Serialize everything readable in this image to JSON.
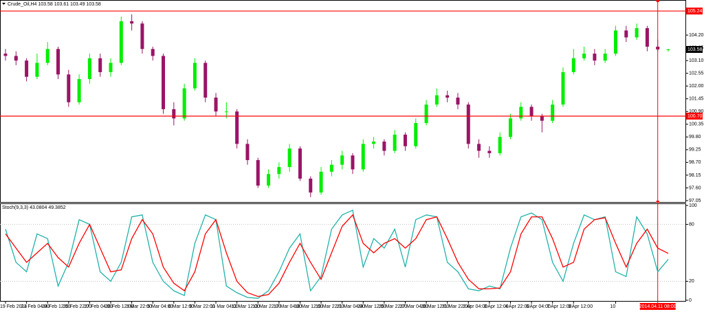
{
  "chart_data": [
    {
      "type": "candlestick",
      "title": "Crude_Oil,H4 103.58 103.61 103.49 103.58",
      "categories": [
        "19 Feb 2014",
        null,
        "21 Feb 04:00",
        null,
        "24 Feb 12:00",
        null,
        "25 Feb 22:00",
        null,
        "27 Feb 04:00",
        null,
        "28 Feb 12:00",
        null,
        "3 Mar 22:00",
        null,
        "5 Mar 04:00",
        null,
        "6 Mar 12:00",
        null,
        "9 Mar 22:00",
        null,
        "11 Mar 04:00",
        null,
        "12 Mar 12:00",
        null,
        "13 Mar 22:00",
        null,
        "17 Mar 04:00",
        null,
        "18 Mar 12:00",
        null,
        "19 Mar 22:00",
        null,
        "21 Mar 04:00",
        null,
        "24 Mar 12:00",
        null,
        "25 Mar 22:00",
        null,
        "27 Mar 04:00",
        null,
        "28 Mar 12:00",
        null,
        "31 Mar 22:00",
        null,
        "2 Apr 04:00",
        null,
        "3 Apr 12:00",
        null,
        "4 Apr 22:00",
        null,
        "6 Apr 04:00",
        null,
        "7 Apr 12:00",
        null,
        "9 Apr 12:00",
        null,
        null,
        null,
        "10",
        null,
        null,
        null,
        null,
        null
      ],
      "ohlc": [
        [
          103.4,
          103.6,
          103.1,
          103.3
        ],
        [
          103.3,
          103.5,
          102.9,
          103.1
        ],
        [
          103.1,
          103.2,
          102.2,
          102.4
        ],
        [
          102.4,
          103.4,
          102.3,
          103.0
        ],
        [
          103.0,
          103.9,
          102.9,
          103.6
        ],
        [
          103.6,
          103.7,
          102.3,
          102.5
        ],
        [
          102.5,
          102.7,
          101.1,
          101.3
        ],
        [
          101.3,
          102.5,
          101.2,
          102.3
        ],
        [
          102.3,
          103.4,
          102.1,
          103.2
        ],
        [
          103.2,
          103.4,
          102.4,
          102.6
        ],
        [
          102.6,
          103.2,
          102.4,
          103.0
        ],
        [
          103.0,
          105.0,
          102.9,
          104.8
        ],
        [
          104.8,
          105.1,
          104.4,
          104.7
        ],
        [
          104.7,
          104.8,
          103.4,
          103.6
        ],
        [
          103.6,
          103.7,
          103.1,
          103.3
        ],
        [
          103.3,
          103.4,
          100.8,
          101.0
        ],
        [
          101.0,
          101.3,
          100.3,
          100.6
        ],
        [
          100.6,
          102.1,
          100.5,
          101.9
        ],
        [
          101.9,
          103.2,
          101.8,
          103.0
        ],
        [
          103.0,
          103.1,
          101.3,
          101.5
        ],
        [
          101.5,
          101.7,
          100.7,
          100.9
        ],
        [
          100.9,
          101.3,
          100.6,
          100.9
        ],
        [
          100.9,
          101.0,
          99.3,
          99.5
        ],
        [
          99.5,
          99.7,
          98.6,
          98.8
        ],
        [
          98.8,
          98.9,
          97.6,
          97.7
        ],
        [
          97.7,
          98.4,
          97.6,
          98.2
        ],
        [
          98.2,
          98.7,
          98.0,
          98.5
        ],
        [
          98.5,
          99.5,
          98.3,
          99.3
        ],
        [
          99.3,
          99.4,
          97.9,
          98.0
        ],
        [
          98.0,
          98.1,
          97.2,
          97.4
        ],
        [
          97.4,
          98.5,
          97.3,
          98.3
        ],
        [
          98.3,
          98.8,
          98.1,
          98.6
        ],
        [
          98.6,
          99.2,
          98.4,
          99.0
        ],
        [
          99.0,
          99.1,
          98.2,
          98.4
        ],
        [
          98.4,
          99.7,
          98.3,
          99.5
        ],
        [
          99.5,
          99.8,
          99.3,
          99.6
        ],
        [
          99.6,
          99.7,
          99.0,
          99.2
        ],
        [
          99.2,
          100.1,
          99.1,
          99.9
        ],
        [
          99.9,
          100.0,
          99.2,
          99.4
        ],
        [
          99.4,
          100.6,
          99.3,
          100.4
        ],
        [
          100.4,
          101.4,
          100.3,
          101.2
        ],
        [
          101.2,
          101.9,
          101.1,
          101.6
        ],
        [
          101.6,
          101.8,
          101.3,
          101.5
        ],
        [
          101.5,
          101.7,
          101.0,
          101.2
        ],
        [
          101.2,
          101.3,
          99.3,
          99.5
        ],
        [
          99.5,
          99.7,
          98.9,
          99.2
        ],
        [
          99.2,
          99.4,
          98.9,
          99.1
        ],
        [
          99.1,
          100.0,
          99.0,
          99.8
        ],
        [
          99.8,
          100.8,
          99.7,
          100.6
        ],
        [
          100.6,
          101.3,
          100.5,
          101.1
        ],
        [
          101.1,
          101.2,
          100.5,
          100.7
        ],
        [
          100.7,
          100.8,
          100.0,
          100.5
        ],
        [
          100.5,
          101.4,
          100.4,
          101.2
        ],
        [
          101.2,
          102.8,
          101.1,
          102.6
        ],
        [
          102.6,
          103.6,
          102.5,
          103.2
        ],
        [
          103.2,
          103.7,
          103.1,
          103.4
        ],
        [
          103.4,
          103.6,
          102.9,
          103.1
        ],
        [
          103.1,
          103.6,
          103.0,
          103.4
        ],
        [
          103.4,
          104.6,
          103.3,
          104.4
        ],
        [
          104.4,
          104.6,
          103.9,
          104.1
        ],
        [
          104.1,
          104.7,
          104.0,
          104.5
        ],
        [
          104.5,
          104.6,
          103.5,
          103.7
        ],
        [
          103.7,
          104.0,
          103.5,
          103.58
        ],
        [
          103.58,
          103.61,
          103.49,
          103.58
        ]
      ],
      "up_color": "#00ee00",
      "down_color": "#9a1466",
      "ylim": [
        96.96,
        105.36
      ],
      "yticks": [
        97.05,
        {
          "value": 97.6,
          "label": "97.60"
        },
        98.15,
        {
          "value": 98.7,
          "label": "98.70"
        },
        99.25,
        {
          "value": 99.8,
          "label": "99.80"
        },
        100.35,
        {
          "value": 100.9,
          "label": "100.90"
        },
        101.45,
        {
          "value": 102,
          "label": "102.00"
        },
        102.55,
        {
          "value": 103.1,
          "label": "103.10"
        },
        103.65,
        {
          "value": 104.2,
          "label": "104.20"
        }
      ],
      "hlines": [
        {
          "value": 105.24,
          "label": "105.24"
        },
        {
          "value": 100.7,
          "label": "100.70"
        }
      ],
      "hline_color": "#ff0000",
      "last_price": 103.58,
      "cursor_label": "2014.04.11 08:00"
    },
    {
      "type": "line",
      "title": "Stoch(9,3,3) 43.0804 49.3852",
      "series": [
        {
          "color": "#20b2aa",
          "values": [
            75,
            40,
            30,
            70,
            65,
            15,
            40,
            85,
            80,
            30,
            20,
            40,
            88,
            90,
            40,
            20,
            10,
            5,
            60,
            90,
            85,
            15,
            8,
            3,
            2,
            10,
            30,
            55,
            70,
            10,
            25,
            75,
            90,
            95,
            35,
            65,
            55,
            75,
            35,
            85,
            90,
            88,
            40,
            30,
            12,
            10,
            15,
            12,
            55,
            88,
            92,
            85,
            40,
            20,
            60,
            90,
            85,
            88,
            30,
            25,
            88,
            70,
            30,
            43.0804
          ]
        },
        {
          "color": "#ff0000",
          "values": [
            70,
            55,
            40,
            50,
            60,
            45,
            35,
            60,
            80,
            55,
            30,
            32,
            65,
            85,
            70,
            35,
            18,
            10,
            30,
            70,
            85,
            50,
            20,
            8,
            4,
            6,
            18,
            40,
            60,
            40,
            22,
            50,
            78,
            90,
            60,
            50,
            60,
            65,
            55,
            65,
            85,
            88,
            65,
            40,
            22,
            12,
            12,
            13,
            30,
            70,
            88,
            88,
            65,
            35,
            40,
            75,
            85,
            87,
            60,
            35,
            60,
            75,
            55,
            49.3852
          ]
        }
      ],
      "ylim": [
        0,
        100
      ],
      "yticks": [
        0,
        20,
        80,
        100
      ],
      "grid": true
    }
  ]
}
